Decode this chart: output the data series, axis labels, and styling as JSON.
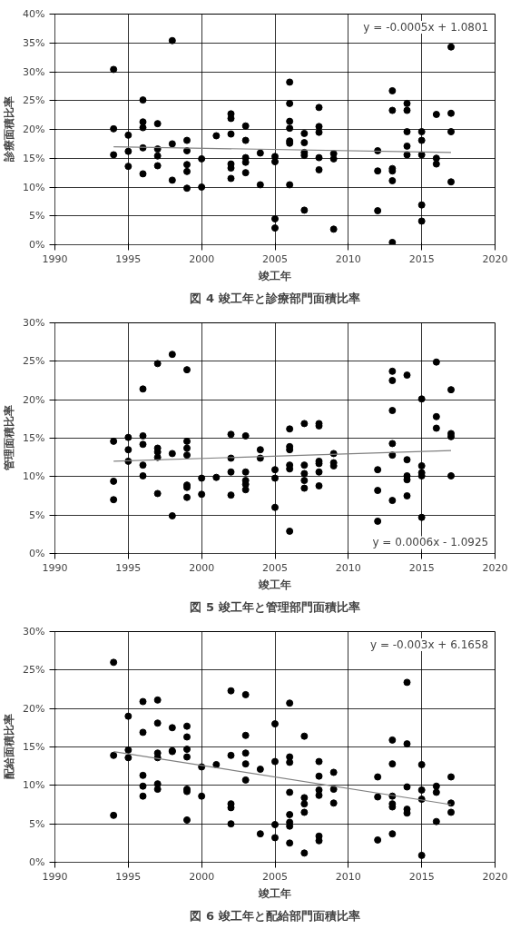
{
  "chart_data": [
    {
      "type": "scatter",
      "title": "図 4 竣工年と診療部門面積比率",
      "xlabel": "竣工年",
      "ylabel": "診療面積比率",
      "xlim": [
        1990,
        2020
      ],
      "xticks": [
        1990,
        1995,
        2000,
        2005,
        2010,
        2015,
        2020
      ],
      "ylim": [
        0,
        40
      ],
      "yticks": [
        {
          "value": 0,
          "label": "0%"
        },
        {
          "value": 5,
          "label": "5%"
        },
        {
          "value": 10,
          "label": "10%"
        },
        {
          "value": 15,
          "label": "15%"
        },
        {
          "value": 20,
          "label": "20%"
        },
        {
          "value": 25,
          "label": "25%"
        },
        {
          "value": 30,
          "label": "30%"
        },
        {
          "value": 35,
          "label": "35%"
        },
        {
          "value": 40,
          "label": "40%"
        }
      ],
      "grid": true,
      "marker": "circle",
      "annotations": [
        "y = -0.0005x + 1.0801"
      ],
      "series": [
        {
          "color": "#000000",
          "x": [
            1994,
            1994,
            1994,
            1995,
            1995,
            1995,
            1996,
            1996,
            1996,
            1996,
            1996,
            1997,
            1997,
            1997,
            1997,
            1998,
            1998,
            1998,
            1999,
            1999,
            1999,
            1999,
            1999,
            2000,
            2000,
            2001,
            2002,
            2002,
            2002,
            2002,
            2002,
            2002,
            2003,
            2003,
            2003,
            2003,
            2003,
            2004,
            2004,
            2005,
            2005,
            2005,
            2005,
            2006,
            2006,
            2006,
            2006,
            2006,
            2006,
            2006,
            2007,
            2007,
            2007,
            2007,
            2007,
            2008,
            2008,
            2008,
            2008,
            2008,
            2009,
            2009,
            2009,
            2012,
            2012,
            2012,
            2013,
            2013,
            2013,
            2013,
            2013,
            2013,
            2014,
            2014,
            2014,
            2014,
            2014,
            2015,
            2015,
            2015,
            2015,
            2015,
            2016,
            2016,
            2016,
            2017,
            2017,
            2017,
            2017
          ],
          "values": [
            30.4,
            20.1,
            15.6,
            19.0,
            16.2,
            13.6,
            25.1,
            21.3,
            20.3,
            16.8,
            12.3,
            21.0,
            16.6,
            15.4,
            13.7,
            35.4,
            17.5,
            11.2,
            18.1,
            16.3,
            13.9,
            12.7,
            9.8,
            14.9,
            10.0,
            18.9,
            22.7,
            21.9,
            19.2,
            14.0,
            13.3,
            11.5,
            20.6,
            18.1,
            15.1,
            14.3,
            12.5,
            15.9,
            10.4,
            15.3,
            14.4,
            4.5,
            2.9,
            28.2,
            24.5,
            21.4,
            20.2,
            18.0,
            17.6,
            10.4,
            19.3,
            17.7,
            16.0,
            15.5,
            6.0,
            23.8,
            20.5,
            19.5,
            15.1,
            13.0,
            15.8,
            14.9,
            2.7,
            16.3,
            12.8,
            5.9,
            26.7,
            23.3,
            13.2,
            12.8,
            11.1,
            0.4,
            24.5,
            23.3,
            19.6,
            17.1,
            15.6,
            19.6,
            18.1,
            15.6,
            6.9,
            4.1,
            22.6,
            15.0,
            14.0,
            34.3,
            22.8,
            19.6,
            10.9
          ]
        },
        {
          "type": "line",
          "color": "#808080",
          "x": [
            1994,
            2017
          ],
          "values": [
            17.0,
            16.0
          ],
          "marker": "none"
        }
      ]
    },
    {
      "type": "scatter",
      "title": "図 5 竣工年と管理部門面積比率",
      "xlabel": "竣工年",
      "ylabel": "管理面積比率",
      "xlim": [
        1990,
        2020
      ],
      "xticks": [
        1990,
        1995,
        2000,
        2005,
        2010,
        2015,
        2020
      ],
      "ylim": [
        0,
        30
      ],
      "yticks": [
        {
          "value": 0,
          "label": "0%"
        },
        {
          "value": 5,
          "label": "5%"
        },
        {
          "value": 10,
          "label": "10%"
        },
        {
          "value": 15,
          "label": "15%"
        },
        {
          "value": 20,
          "label": "20%"
        },
        {
          "value": 25,
          "label": "25%"
        },
        {
          "value": 30,
          "label": "30%"
        }
      ],
      "grid": true,
      "marker": "circle",
      "annotations": [
        "y = 0.0006x - 1.0925"
      ],
      "series": [
        {
          "color": "#000000",
          "x": [
            1994,
            1994,
            1994,
            1995,
            1995,
            1995,
            1996,
            1996,
            1996,
            1996,
            1996,
            1997,
            1997,
            1997,
            1997,
            1997,
            1998,
            1998,
            1998,
            1999,
            1999,
            1999,
            1999,
            1999,
            1999,
            1999,
            2000,
            2000,
            2001,
            2002,
            2002,
            2002,
            2002,
            2003,
            2003,
            2003,
            2003,
            2003,
            2004,
            2004,
            2005,
            2005,
            2005,
            2006,
            2006,
            2006,
            2006,
            2006,
            2006,
            2007,
            2007,
            2007,
            2007,
            2007,
            2008,
            2008,
            2008,
            2008,
            2008,
            2008,
            2009,
            2009,
            2009,
            2012,
            2012,
            2012,
            2013,
            2013,
            2013,
            2013,
            2013,
            2013,
            2014,
            2014,
            2014,
            2014,
            2014,
            2015,
            2015,
            2015,
            2015,
            2015,
            2016,
            2016,
            2016,
            2017,
            2017,
            2017,
            2017
          ],
          "values": [
            14.6,
            9.4,
            7.0,
            15.1,
            13.5,
            12.0,
            21.4,
            15.3,
            14.2,
            11.5,
            10.1,
            24.7,
            13.7,
            13.2,
            12.5,
            7.8,
            25.9,
            13.0,
            4.9,
            23.9,
            14.6,
            13.7,
            12.8,
            8.9,
            8.6,
            7.3,
            9.8,
            7.7,
            9.9,
            15.5,
            12.4,
            10.6,
            7.6,
            15.3,
            10.6,
            9.5,
            9.0,
            8.3,
            13.5,
            12.4,
            10.9,
            9.8,
            6.0,
            16.2,
            13.9,
            13.5,
            11.5,
            11.0,
            2.9,
            16.9,
            11.5,
            10.4,
            9.5,
            8.5,
            16.9,
            16.6,
            12.0,
            11.7,
            10.6,
            8.8,
            13.0,
            11.8,
            11.4,
            10.9,
            8.2,
            4.2,
            23.7,
            22.5,
            18.6,
            14.3,
            12.8,
            6.9,
            23.2,
            12.2,
            10.1,
            9.6,
            7.5,
            20.1,
            11.4,
            10.5,
            10.1,
            4.7,
            24.9,
            17.8,
            16.3,
            21.3,
            15.6,
            15.2,
            10.1
          ]
        },
        {
          "type": "line",
          "color": "#808080",
          "x": [
            1994,
            2017
          ],
          "values": [
            12.0,
            13.4
          ],
          "marker": "none"
        }
      ]
    },
    {
      "type": "scatter",
      "title": "図 6 竣工年と配給部門面積比率",
      "xlabel": "竣工年",
      "ylabel": "配給面積比率",
      "xlim": [
        1990,
        2020
      ],
      "xticks": [
        1990,
        1995,
        2000,
        2005,
        2010,
        2015,
        2020
      ],
      "ylim": [
        0,
        30
      ],
      "yticks": [
        {
          "value": 0,
          "label": "0%"
        },
        {
          "value": 5,
          "label": "5%"
        },
        {
          "value": 10,
          "label": "10%"
        },
        {
          "value": 15,
          "label": "15%"
        },
        {
          "value": 20,
          "label": "20%"
        },
        {
          "value": 25,
          "label": "25%"
        },
        {
          "value": 30,
          "label": "30%"
        }
      ],
      "grid": true,
      "marker": "circle",
      "annotations": [
        "y = -0.003x + 6.1658"
      ],
      "series": [
        {
          "color": "#000000",
          "x": [
            1994,
            1994,
            1994,
            1995,
            1995,
            1995,
            1996,
            1996,
            1996,
            1996,
            1996,
            1997,
            1997,
            1997,
            1997,
            1997,
            1997,
            1998,
            1998,
            1998,
            1999,
            1999,
            1999,
            1999,
            1999,
            1999,
            1999,
            2000,
            2000,
            2001,
            2002,
            2002,
            2002,
            2002,
            2002,
            2003,
            2003,
            2003,
            2003,
            2003,
            2004,
            2004,
            2005,
            2005,
            2005,
            2005,
            2006,
            2006,
            2006,
            2006,
            2006,
            2006,
            2006,
            2006,
            2007,
            2007,
            2007,
            2007,
            2007,
            2008,
            2008,
            2008,
            2008,
            2008,
            2008,
            2009,
            2009,
            2009,
            2012,
            2012,
            2012,
            2013,
            2013,
            2013,
            2013,
            2013,
            2013,
            2014,
            2014,
            2014,
            2014,
            2014,
            2015,
            2015,
            2015,
            2015,
            2016,
            2016,
            2016,
            2017,
            2017,
            2017
          ],
          "values": [
            26.0,
            13.9,
            6.1,
            19.0,
            14.6,
            13.6,
            20.9,
            16.9,
            11.3,
            9.9,
            8.6,
            21.1,
            18.1,
            14.2,
            13.6,
            10.2,
            9.5,
            17.5,
            14.5,
            14.4,
            17.7,
            16.3,
            14.7,
            13.7,
            9.5,
            9.2,
            5.5,
            12.4,
            8.6,
            12.7,
            22.3,
            13.9,
            7.6,
            7.1,
            5.0,
            21.8,
            16.5,
            14.2,
            12.8,
            10.7,
            12.1,
            3.7,
            18.0,
            13.1,
            4.9,
            3.2,
            20.7,
            13.7,
            13.0,
            9.1,
            6.2,
            5.2,
            4.7,
            2.5,
            16.4,
            8.4,
            7.6,
            6.5,
            1.2,
            13.1,
            11.2,
            9.4,
            8.7,
            3.4,
            2.8,
            11.7,
            9.5,
            7.7,
            11.1,
            8.5,
            2.9,
            15.9,
            12.8,
            8.6,
            7.6,
            7.2,
            3.7,
            23.4,
            15.4,
            9.8,
            6.9,
            6.4,
            12.7,
            9.4,
            8.2,
            0.9,
            9.9,
            9.1,
            5.3,
            11.1,
            7.7,
            6.5
          ]
        },
        {
          "type": "line",
          "color": "#808080",
          "x": [
            1994,
            2017
          ],
          "values": [
            14.4,
            7.5
          ],
          "marker": "none"
        }
      ]
    }
  ]
}
